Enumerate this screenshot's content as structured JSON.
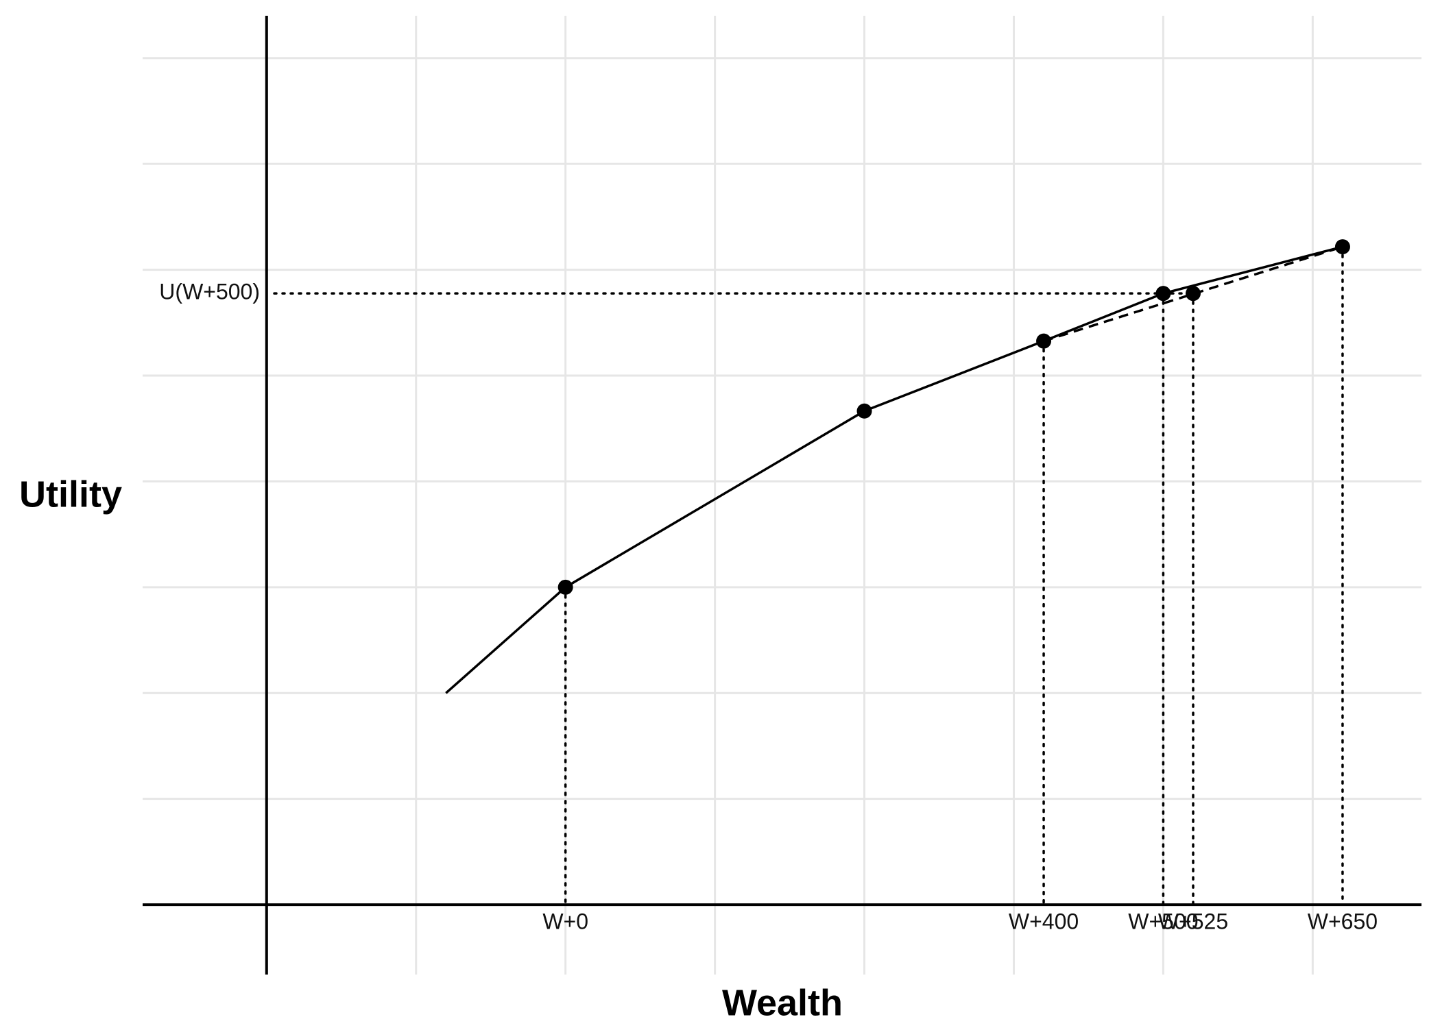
{
  "chart_data": {
    "type": "line",
    "xlabel": "Wealth",
    "ylabel": "Utility",
    "xlim": [
      -353.7,
      716
    ],
    "ylim": [
      -0.66,
      8.4
    ],
    "xticks": [
      {
        "value": 0,
        "label": "W+0"
      },
      {
        "value": 400,
        "label": "W+400"
      },
      {
        "value": 500,
        "label": "W+500"
      },
      {
        "value": 525,
        "label": "W+525"
      },
      {
        "value": 650,
        "label": "W+650"
      }
    ],
    "yticks": [
      {
        "value": 5.776,
        "label": "U(W+500)"
      }
    ],
    "xgrid": [
      -125,
      0,
      125,
      250,
      375,
      500,
      625
    ],
    "ygrid": [
      1,
      2,
      3,
      4,
      5,
      6,
      7,
      8
    ],
    "grid": true,
    "yaxis_at": -250,
    "xaxis_at": 0,
    "series": [
      {
        "color": "#000000",
        "style": "solid",
        "x": [
          -100,
          0,
          250,
          400,
          500,
          650
        ],
        "values": [
          2,
          3,
          4.665,
          5.326,
          5.776,
          6.217
        ]
      },
      {
        "color": "#000000",
        "style": "dashed",
        "x": [
          400,
          650
        ],
        "values": [
          5.326,
          6.217
        ]
      }
    ],
    "points": {
      "color": "#000000",
      "x": [
        0,
        250,
        400,
        500,
        525,
        650
      ],
      "values": [
        3,
        4.665,
        5.326,
        5.776,
        5.776,
        6.217
      ]
    }
  }
}
